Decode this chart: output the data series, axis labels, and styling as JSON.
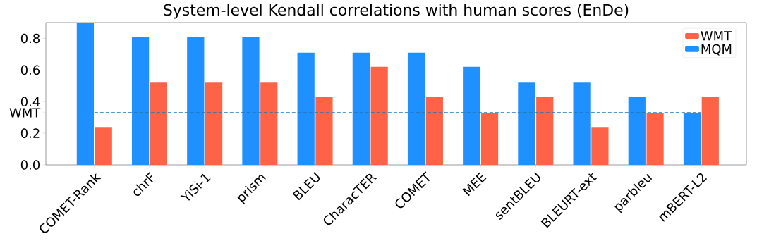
{
  "chart_data": {
    "type": "bar",
    "title": "System-level Kendall correlations with human scores (EnDe)",
    "categories": [
      "COMET-Rank",
      "chrF",
      "YiSi-1",
      "prism",
      "BLEU",
      "CharacTER",
      "COMET",
      "MEE",
      "sentBLEU",
      "BLEURT-ext",
      "parbleu",
      "mBERT-L2"
    ],
    "series": [
      {
        "name": "MQM",
        "color": "#1e90ff",
        "values": [
          0.9,
          0.81,
          0.81,
          0.81,
          0.71,
          0.71,
          0.71,
          0.62,
          0.52,
          0.52,
          0.43,
          0.33
        ]
      },
      {
        "name": "WMT",
        "color": "#ff6347",
        "values": [
          0.24,
          0.52,
          0.52,
          0.52,
          0.43,
          0.62,
          0.43,
          0.33,
          0.43,
          0.24,
          0.33,
          0.43
        ]
      }
    ],
    "ylim": [
      0,
      0.9
    ],
    "yticks": [
      {
        "value": 0,
        "label": "0.0"
      },
      0.2,
      0.4,
      0.6,
      0.8,
      {
        "value": 0.33,
        "label": "WMT"
      }
    ],
    "ref_lines": [
      {
        "axis": "y",
        "value": 0.33,
        "color": "#1f77b4",
        "line_style": "dashed"
      }
    ],
    "legend": "top right",
    "grid": false
  }
}
